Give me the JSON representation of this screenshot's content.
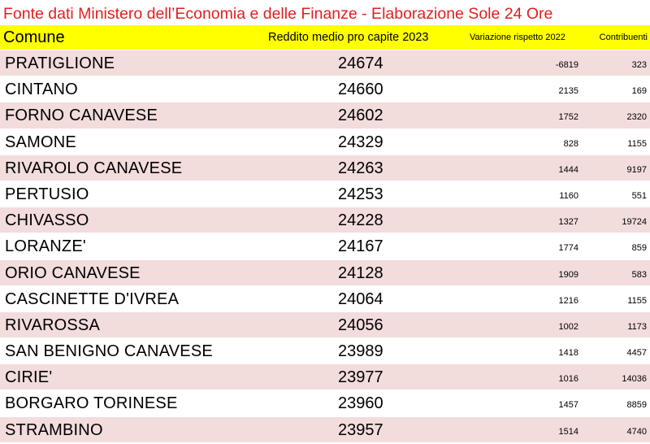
{
  "title": "Fonte dati Ministero dell’Economia e delle Finanze - Elaborazione Sole 24 Ore",
  "colors": {
    "title_text": "#e02020",
    "header_bg": "#ffff00",
    "row_shade": "#f2dcdc"
  },
  "table": {
    "headers": {
      "comune": "Comune",
      "reddito": "Reddito medio pro capite 2023",
      "variazione": "Variazione rispetto 2022",
      "contribuenti": "Contribuenti"
    },
    "rows": [
      {
        "comune": "PRATIGLIONE",
        "reddito": "24674",
        "variazione": "-6819",
        "contribuenti": "323"
      },
      {
        "comune": "CINTANO",
        "reddito": "24660",
        "variazione": "2135",
        "contribuenti": "169"
      },
      {
        "comune": "FORNO CANAVESE",
        "reddito": "24602",
        "variazione": "1752",
        "contribuenti": "2320"
      },
      {
        "comune": "SAMONE",
        "reddito": "24329",
        "variazione": "828",
        "contribuenti": "1155"
      },
      {
        "comune": "RIVAROLO CANAVESE",
        "reddito": "24263",
        "variazione": "1444",
        "contribuenti": "9197"
      },
      {
        "comune": "PERTUSIO",
        "reddito": "24253",
        "variazione": "1160",
        "contribuenti": "551"
      },
      {
        "comune": "CHIVASSO",
        "reddito": "24228",
        "variazione": "1327",
        "contribuenti": "19724"
      },
      {
        "comune": "LORANZE'",
        "reddito": "24167",
        "variazione": "1774",
        "contribuenti": "859"
      },
      {
        "comune": "ORIO CANAVESE",
        "reddito": "24128",
        "variazione": "1909",
        "contribuenti": "583"
      },
      {
        "comune": "CASCINETTE D'IVREA",
        "reddito": "24064",
        "variazione": "1216",
        "contribuenti": "1155"
      },
      {
        "comune": "RIVAROSSA",
        "reddito": "24056",
        "variazione": "1002",
        "contribuenti": "1173"
      },
      {
        "comune": "SAN BENIGNO CANAVESE",
        "reddito": "23989",
        "variazione": "1418",
        "contribuenti": "4457"
      },
      {
        "comune": "CIRIE'",
        "reddito": "23977",
        "variazione": "1016",
        "contribuenti": "14036"
      },
      {
        "comune": "BORGARO TORINESE",
        "reddito": "23960",
        "variazione": "1457",
        "contribuenti": "8859"
      },
      {
        "comune": "STRAMBINO",
        "reddito": "23957",
        "variazione": "1514",
        "contribuenti": "4740"
      }
    ]
  }
}
